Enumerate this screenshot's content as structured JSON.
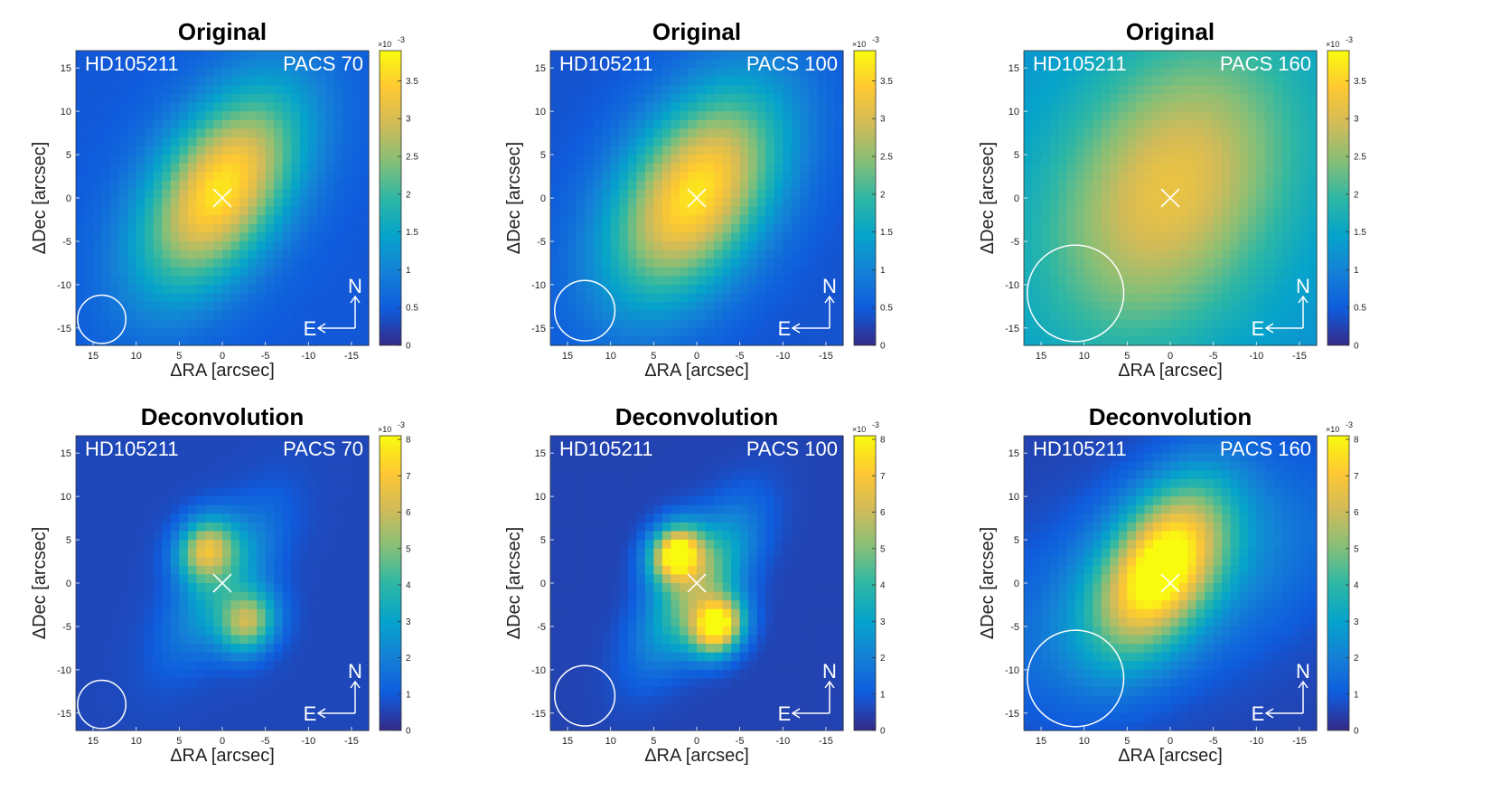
{
  "chart_data": [
    {
      "type": "heatmap",
      "title": "Original",
      "object": "HD105211",
      "band": "PACS 70",
      "xlabel": "ΔRA [arcsec]",
      "ylabel": "ΔDec [arcsec]",
      "xlim": [
        17,
        -17
      ],
      "ylim": [
        -17,
        17
      ],
      "xticks": [
        15,
        10,
        5,
        0,
        -5,
        -10,
        -15
      ],
      "yticks": [
        15,
        10,
        5,
        0,
        -5,
        -10,
        -15
      ],
      "colorbar": {
        "range": [
          0,
          3.9
        ],
        "ticks": [
          0,
          0.5,
          1,
          1.5,
          2,
          2.5,
          3,
          3.5
        ],
        "exponent": "×10",
        "exponent_power": "-3"
      },
      "background_level": 0.45,
      "components": [
        {
          "x": 0.2,
          "y": 1.0,
          "sigma_major": 9.0,
          "sigma_minor": 5.0,
          "pa_deg": 33,
          "peak": 3.25
        }
      ],
      "star_marker": {
        "x": 0,
        "y": 0
      },
      "beam": {
        "x": 14,
        "y": -14,
        "radius": 2.8
      },
      "compass": {
        "north": "N",
        "east": "E"
      }
    },
    {
      "type": "heatmap",
      "title": "Original",
      "object": "HD105211",
      "band": "PACS 100",
      "xlabel": "ΔRA [arcsec]",
      "ylabel": "ΔDec [arcsec]",
      "xlim": [
        17,
        -17
      ],
      "ylim": [
        -17,
        17
      ],
      "xticks": [
        15,
        10,
        5,
        0,
        -5,
        -10,
        -15
      ],
      "yticks": [
        15,
        10,
        5,
        0,
        -5,
        -10,
        -15
      ],
      "colorbar": {
        "range": [
          0,
          3.9
        ],
        "ticks": [
          0,
          0.5,
          1,
          1.5,
          2,
          2.5,
          3,
          3.5
        ],
        "exponent": "×10",
        "exponent_power": "-3"
      },
      "background_level": 0.4,
      "components": [
        {
          "x": 0.2,
          "y": 0.5,
          "sigma_major": 9.5,
          "sigma_minor": 5.6,
          "pa_deg": 33,
          "peak": 3.3
        }
      ],
      "star_marker": {
        "x": 0,
        "y": 0
      },
      "beam": {
        "x": 13,
        "y": -13,
        "radius": 3.5
      },
      "compass": {
        "north": "N",
        "east": "E"
      }
    },
    {
      "type": "heatmap",
      "title": "Original",
      "object": "HD105211",
      "band": "PACS 160",
      "xlabel": "ΔRA [arcsec]",
      "ylabel": "ΔDec [arcsec]",
      "xlim": [
        17,
        -17
      ],
      "ylim": [
        -17,
        17
      ],
      "xticks": [
        15,
        10,
        5,
        0,
        -5,
        -10,
        -15
      ],
      "yticks": [
        15,
        10,
        5,
        0,
        -5,
        -10,
        -15
      ],
      "colorbar": {
        "range": [
          0,
          3.9
        ],
        "ticks": [
          0,
          0.5,
          1,
          1.5,
          2,
          2.5,
          3,
          3.5
        ],
        "exponent": "×10",
        "exponent_power": "-3"
      },
      "background_level": 1.2,
      "components": [
        {
          "x": 0.0,
          "y": 1.0,
          "sigma_major": 13.0,
          "sigma_minor": 9.0,
          "pa_deg": 30,
          "peak": 2.0
        }
      ],
      "star_marker": {
        "x": 0,
        "y": 0
      },
      "beam": {
        "x": 11,
        "y": -11,
        "radius": 5.6
      },
      "compass": {
        "north": "N",
        "east": "E"
      }
    },
    {
      "type": "heatmap",
      "title": "Deconvolution",
      "object": "HD105211",
      "band": "PACS 70",
      "xlabel": "ΔRA [arcsec]",
      "ylabel": "ΔDec [arcsec]",
      "xlim": [
        17,
        -17
      ],
      "ylim": [
        -17,
        17
      ],
      "xticks": [
        15,
        10,
        5,
        0,
        -5,
        -10,
        -15
      ],
      "yticks": [
        15,
        10,
        5,
        0,
        -5,
        -10,
        -15
      ],
      "colorbar": {
        "range": [
          0,
          8.1
        ],
        "ticks": [
          0,
          1,
          2,
          3,
          4,
          5,
          6,
          7,
          8
        ],
        "exponent": "×10",
        "exponent_power": "-3"
      },
      "background_level": 0.6,
      "components": [
        {
          "x": 2.0,
          "y": 4.0,
          "sigma_major": 2.6,
          "sigma_minor": 2.2,
          "pa_deg": 30,
          "peak": 5.2
        },
        {
          "x": -3.0,
          "y": -4.5,
          "sigma_major": 2.6,
          "sigma_minor": 2.2,
          "pa_deg": 30,
          "peak": 5.0
        },
        {
          "x": 0.0,
          "y": 0.0,
          "sigma_major": 6.5,
          "sigma_minor": 2.8,
          "pa_deg": 33,
          "peak": 2.6
        }
      ],
      "star_marker": {
        "x": 0,
        "y": 0
      },
      "beam": {
        "x": 14,
        "y": -14,
        "radius": 2.8
      },
      "compass": {
        "north": "N",
        "east": "E"
      }
    },
    {
      "type": "heatmap",
      "title": "Deconvolution",
      "object": "HD105211",
      "band": "PACS 100",
      "xlabel": "ΔRA [arcsec]",
      "ylabel": "ΔDec [arcsec]",
      "xlim": [
        17,
        -17
      ],
      "ylim": [
        -17,
        17
      ],
      "xticks": [
        15,
        10,
        5,
        0,
        -5,
        -10,
        -15
      ],
      "yticks": [
        15,
        10,
        5,
        0,
        -5,
        -10,
        -15
      ],
      "colorbar": {
        "range": [
          0,
          8.1
        ],
        "ticks": [
          0,
          1,
          2,
          3,
          4,
          5,
          6,
          7,
          8
        ],
        "exponent": "×10",
        "exponent_power": "-3"
      },
      "background_level": 0.5,
      "components": [
        {
          "x": 2.5,
          "y": 3.5,
          "sigma_major": 2.4,
          "sigma_minor": 2.0,
          "pa_deg": 30,
          "peak": 7.4
        },
        {
          "x": -2.5,
          "y": -5.0,
          "sigma_major": 2.4,
          "sigma_minor": 2.0,
          "pa_deg": 30,
          "peak": 7.6
        },
        {
          "x": 0.0,
          "y": -0.5,
          "sigma_major": 6.5,
          "sigma_minor": 2.8,
          "pa_deg": 33,
          "peak": 4.5
        }
      ],
      "star_marker": {
        "x": 0,
        "y": 0
      },
      "beam": {
        "x": 13,
        "y": -13,
        "radius": 3.5
      },
      "compass": {
        "north": "N",
        "east": "E"
      }
    },
    {
      "type": "heatmap",
      "title": "Deconvolution",
      "object": "HD105211",
      "band": "PACS 160",
      "xlabel": "ΔRA [arcsec]",
      "ylabel": "ΔDec [arcsec]",
      "xlim": [
        17,
        -17
      ],
      "ylim": [
        -17,
        17
      ],
      "xticks": [
        15,
        10,
        5,
        0,
        -5,
        -10,
        -15
      ],
      "yticks": [
        15,
        10,
        5,
        0,
        -5,
        -10,
        -15
      ],
      "colorbar": {
        "range": [
          0,
          8.1
        ],
        "ticks": [
          0,
          1,
          2,
          3,
          4,
          5,
          6,
          7,
          8
        ],
        "exponent": "×10",
        "exponent_power": "-3"
      },
      "background_level": 0.5,
      "components": [
        {
          "x": 1.0,
          "y": 2.0,
          "sigma_major": 7.5,
          "sigma_minor": 4.2,
          "pa_deg": 30,
          "peak": 6.8
        },
        {
          "x": 0.0,
          "y": 0.0,
          "sigma_major": 15.0,
          "sigma_minor": 7.0,
          "pa_deg": 65,
          "peak": 2.0
        }
      ],
      "star_marker": {
        "x": 0,
        "y": 0
      },
      "beam": {
        "x": 11,
        "y": -11,
        "radius": 5.6
      },
      "compass": {
        "north": "N",
        "east": "E"
      }
    }
  ]
}
